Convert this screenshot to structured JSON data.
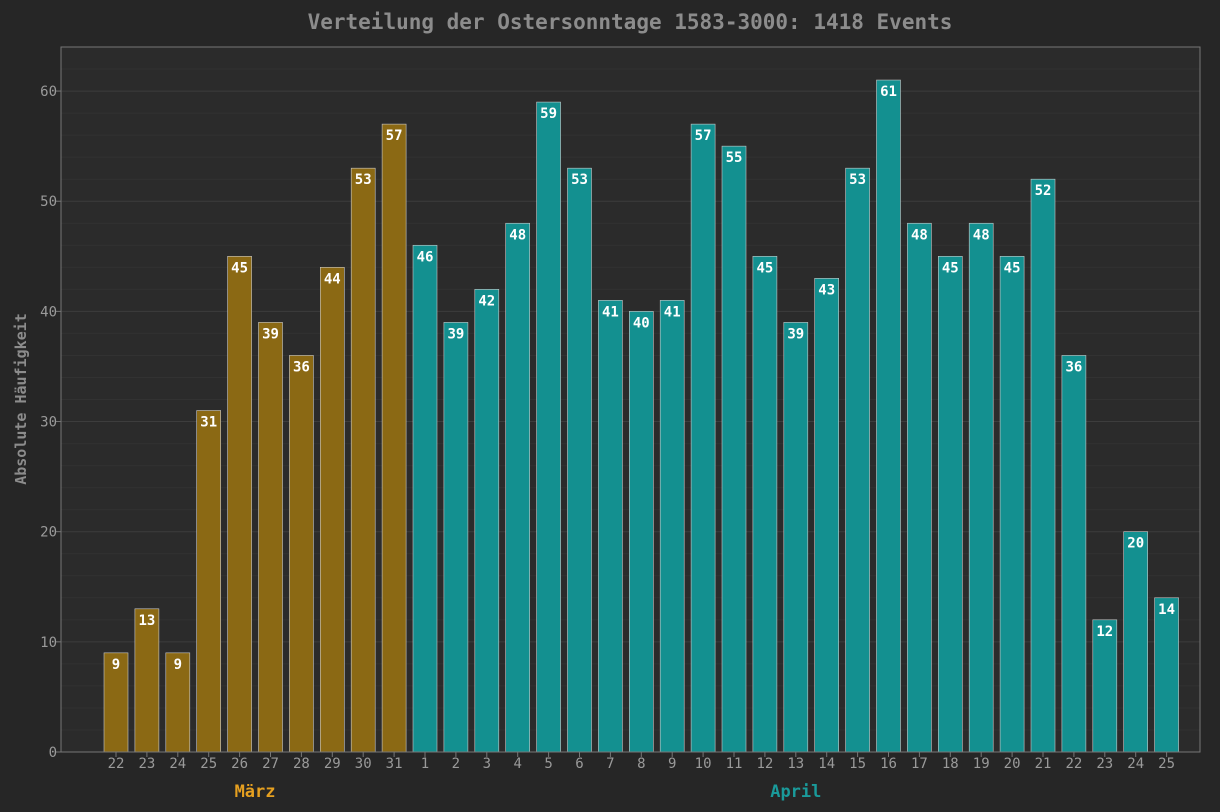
{
  "chart_data": {
    "type": "bar",
    "title": "Verteilung der Ostersonntage 1583-3000: 1418 Events",
    "xlabel": "",
    "ylabel": "Absolute Häufigkeit",
    "ylim": [
      0,
      64
    ],
    "yticks": [
      0,
      10,
      20,
      30,
      40,
      50,
      60
    ],
    "grid": true,
    "categories": [
      "22",
      "23",
      "24",
      "25",
      "26",
      "27",
      "28",
      "29",
      "30",
      "31",
      "1",
      "2",
      "3",
      "4",
      "5",
      "6",
      "7",
      "8",
      "9",
      "10",
      "11",
      "12",
      "13",
      "14",
      "15",
      "16",
      "17",
      "18",
      "19",
      "20",
      "21",
      "22",
      "23",
      "24",
      "25"
    ],
    "values": [
      9,
      13,
      9,
      31,
      45,
      39,
      36,
      44,
      53,
      57,
      46,
      39,
      42,
      48,
      59,
      53,
      41,
      40,
      41,
      57,
      55,
      45,
      39,
      43,
      53,
      61,
      48,
      45,
      48,
      45,
      52,
      36,
      12,
      20,
      14
    ],
    "groups": [
      {
        "name": "März",
        "start": 0,
        "end": 9,
        "color": "#8b6914",
        "label_color": "#e6a020"
      },
      {
        "name": "April",
        "start": 10,
        "end": 34,
        "color": "#139090",
        "label_color": "#1a9a9a"
      }
    ],
    "colors": {
      "background": "#262626",
      "plot_background": "#2b2b2b",
      "grid_major": "#3d3d3d",
      "grid_minor": "#323232",
      "axis": "#777777",
      "bar_edge": "#c9c9c9"
    }
  }
}
